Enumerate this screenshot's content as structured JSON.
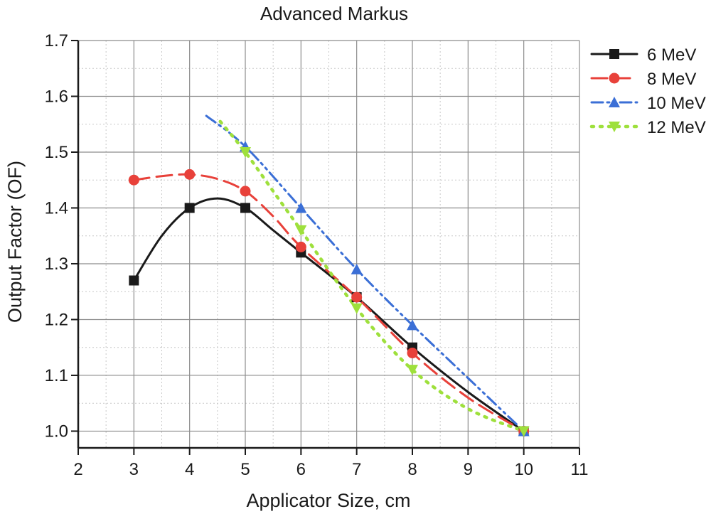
{
  "chart_data": {
    "type": "line",
    "title": "Advanced Markus",
    "xlabel": "Applicator Size, cm",
    "ylabel": "Output Factor (OF)",
    "xlim": [
      2,
      11
    ],
    "ylim": [
      0.97,
      1.7
    ],
    "xticks": [
      "2",
      "3",
      "4",
      "5",
      "6",
      "7",
      "8",
      "9",
      "10",
      "11"
    ],
    "yticks": [
      "1.0",
      "1.1",
      "1.2",
      "1.3",
      "1.4",
      "1.5",
      "1.6",
      "1.7"
    ],
    "grid": true,
    "legend_position": "top-right, outside plot",
    "series": [
      {
        "name": "6 MeV",
        "color": "#1a1a1a",
        "marker": "square",
        "line_style": "solid",
        "points": [
          [
            3,
            1.27
          ],
          [
            4,
            1.4
          ],
          [
            5,
            1.4
          ],
          [
            6,
            1.32
          ],
          [
            7,
            1.24
          ],
          [
            8,
            1.15
          ],
          [
            10,
            1.0
          ]
        ],
        "curve": [
          [
            3,
            1.27
          ],
          [
            3.5,
            1.35
          ],
          [
            4,
            1.4
          ],
          [
            4.5,
            1.417
          ],
          [
            5,
            1.4
          ],
          [
            5.5,
            1.36
          ],
          [
            6,
            1.32
          ],
          [
            7,
            1.24
          ],
          [
            8,
            1.15
          ],
          [
            9,
            1.07
          ],
          [
            10,
            1.0
          ]
        ]
      },
      {
        "name": "8 MeV",
        "color": "#e8413a",
        "marker": "circle",
        "line_style": "dashed",
        "points": [
          [
            3,
            1.45
          ],
          [
            4,
            1.46
          ],
          [
            5,
            1.43
          ],
          [
            6,
            1.33
          ],
          [
            7,
            1.24
          ],
          [
            8,
            1.14
          ],
          [
            10,
            1.0
          ]
        ],
        "curve": [
          [
            3,
            1.45
          ],
          [
            3.5,
            1.457
          ],
          [
            4,
            1.46
          ],
          [
            4.5,
            1.452
          ],
          [
            5,
            1.43
          ],
          [
            5.5,
            1.385
          ],
          [
            6,
            1.33
          ],
          [
            7,
            1.24
          ],
          [
            8,
            1.14
          ],
          [
            9,
            1.06
          ],
          [
            10,
            1.0
          ]
        ]
      },
      {
        "name": "10 MeV",
        "color": "#3b6fd6",
        "marker": "triangle-up",
        "line_style": "dash-dot-dot",
        "points": [
          [
            5,
            1.51
          ],
          [
            6,
            1.4
          ],
          [
            7,
            1.29
          ],
          [
            8,
            1.19
          ],
          [
            10,
            1.0
          ]
        ],
        "curve": [
          [
            4.3,
            1.565
          ],
          [
            5,
            1.51
          ],
          [
            6,
            1.4
          ],
          [
            7,
            1.29
          ],
          [
            8,
            1.19
          ],
          [
            9,
            1.095
          ],
          [
            10,
            1.0
          ]
        ]
      },
      {
        "name": "12 MeV",
        "color": "#9ee03c",
        "marker": "triangle-down",
        "line_style": "dotted",
        "points": [
          [
            5,
            1.5
          ],
          [
            6,
            1.36
          ],
          [
            7,
            1.22
          ],
          [
            8,
            1.11
          ],
          [
            10,
            1.0
          ]
        ],
        "curve": [
          [
            4.55,
            1.555
          ],
          [
            5,
            1.5
          ],
          [
            5.5,
            1.43
          ],
          [
            6,
            1.36
          ],
          [
            7,
            1.22
          ],
          [
            8,
            1.11
          ],
          [
            9,
            1.04
          ],
          [
            10,
            1.0
          ]
        ]
      }
    ]
  }
}
